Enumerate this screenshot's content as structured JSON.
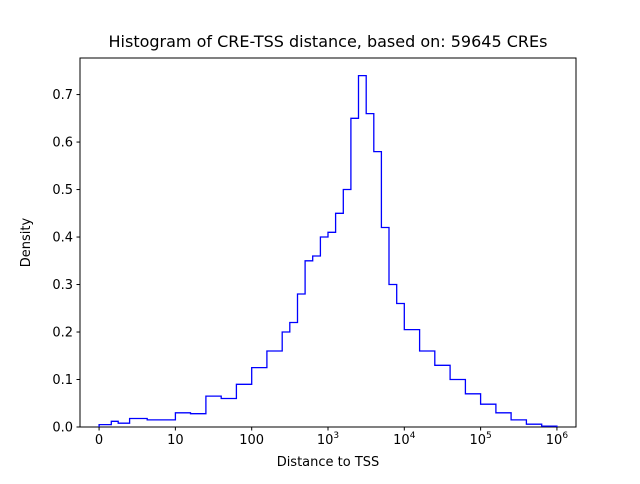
{
  "chart_data": {
    "type": "bar",
    "style": "step-histogram",
    "title": "Histogram of CRE-TSS distance, based on: 59645 CREs",
    "xlabel": "Distance to TSS",
    "ylabel": "Density",
    "xscale": "symlog",
    "symlog_linthresh": 10,
    "grid": false,
    "legend": null,
    "line_color": "#0000ff",
    "axis_color": "#000000",
    "ylim": [
      0,
      0.777
    ],
    "xrange_units": [
      -0.25,
      6.25
    ],
    "bin_edges": [
      0,
      1.6,
      2.5,
      4,
      6.3,
      10,
      15.8,
      25.1,
      39.8,
      63.1,
      100,
      158,
      251,
      316,
      398,
      501,
      631,
      794,
      1000,
      1259,
      1585,
      1995,
      2512,
      3162,
      3981,
      5012,
      6310,
      7943,
      10000,
      15849,
      25119,
      39811,
      63096,
      100000,
      158489,
      251189,
      398107,
      630957,
      1000000
    ],
    "densities": [
      0.005,
      0.012,
      0.008,
      0.018,
      0.015,
      0.03,
      0.028,
      0.065,
      0.06,
      0.09,
      0.125,
      0.16,
      0.2,
      0.22,
      0.28,
      0.35,
      0.36,
      0.4,
      0.41,
      0.45,
      0.5,
      0.65,
      0.74,
      0.66,
      0.58,
      0.42,
      0.3,
      0.26,
      0.205,
      0.16,
      0.13,
      0.1,
      0.07,
      0.048,
      0.03,
      0.015,
      0.006,
      0.002
    ],
    "xticks": [
      {
        "v": 0,
        "label": "0"
      },
      {
        "v": 10,
        "label": "10"
      },
      {
        "v": 100,
        "label": "100"
      },
      {
        "v": 1000,
        "label": "10",
        "exp": "3"
      },
      {
        "v": 10000,
        "label": "10",
        "exp": "4"
      },
      {
        "v": 100000,
        "label": "10",
        "exp": "5"
      },
      {
        "v": 1000000,
        "label": "10",
        "exp": "6"
      }
    ],
    "yticks": [
      0.0,
      0.1,
      0.2,
      0.3,
      0.4,
      0.5,
      0.6,
      0.7
    ]
  }
}
